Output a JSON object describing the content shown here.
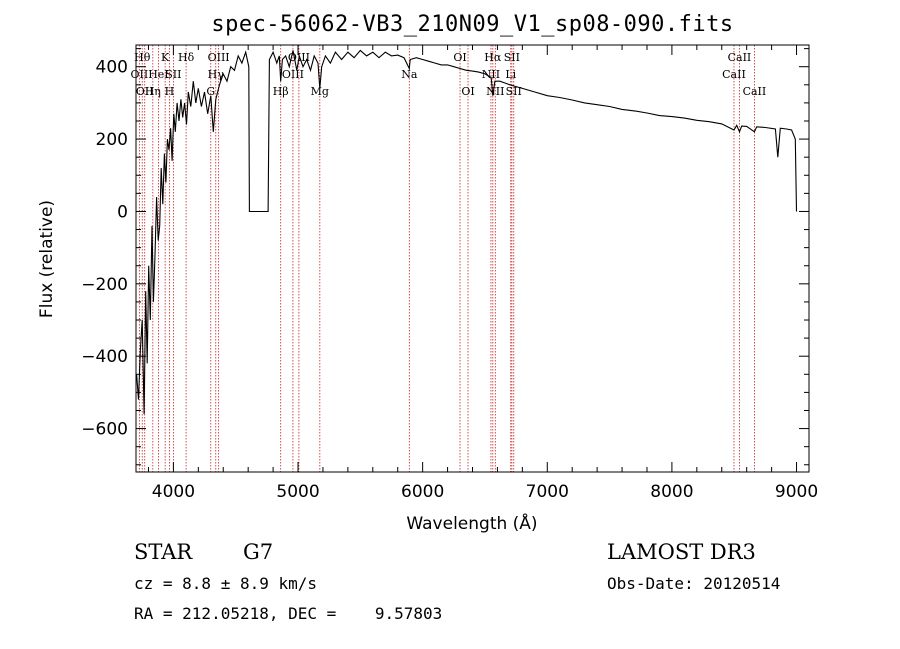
{
  "chart_data": {
    "type": "line",
    "title": "spec-56062-VB3_210N09_V1_sp08-090.fits",
    "xlabel": "Wavelength (Å)",
    "ylabel": "Flux (relative)",
    "xlim": [
      3700,
      9100
    ],
    "ylim": [
      -720,
      460
    ],
    "xticks": [
      4000,
      5000,
      6000,
      7000,
      8000,
      9000
    ],
    "yticks": [
      -600,
      -400,
      -200,
      0,
      200,
      400
    ],
    "series": [
      {
        "name": "spectrum",
        "points": [
          [
            3705,
            -450
          ],
          [
            3720,
            -520
          ],
          [
            3735,
            -380
          ],
          [
            3750,
            -300
          ],
          [
            3765,
            -560
          ],
          [
            3778,
            -220
          ],
          [
            3790,
            -420
          ],
          [
            3802,
            -150
          ],
          [
            3815,
            -300
          ],
          [
            3828,
            -40
          ],
          [
            3840,
            -250
          ],
          [
            3852,
            -130
          ],
          [
            3865,
            40
          ],
          [
            3878,
            -80
          ],
          [
            3890,
            -40
          ],
          [
            3902,
            120
          ],
          [
            3915,
            20
          ],
          [
            3928,
            160
          ],
          [
            3940,
            80
          ],
          [
            3952,
            200
          ],
          [
            3965,
            170
          ],
          [
            3978,
            230
          ],
          [
            3990,
            140
          ],
          [
            4003,
            270
          ],
          [
            4015,
            220
          ],
          [
            4030,
            300
          ],
          [
            4045,
            250
          ],
          [
            4060,
            310
          ],
          [
            4075,
            260
          ],
          [
            4090,
            300
          ],
          [
            4105,
            240
          ],
          [
            4120,
            330
          ],
          [
            4140,
            290
          ],
          [
            4160,
            360
          ],
          [
            4180,
            300
          ],
          [
            4200,
            340
          ],
          [
            4225,
            290
          ],
          [
            4250,
            330
          ],
          [
            4275,
            270
          ],
          [
            4300,
            320
          ],
          [
            4320,
            220
          ],
          [
            4340,
            310
          ],
          [
            4370,
            350
          ],
          [
            4400,
            380
          ],
          [
            4430,
            360
          ],
          [
            4460,
            400
          ],
          [
            4490,
            390
          ],
          [
            4520,
            430
          ],
          [
            4550,
            410
          ],
          [
            4580,
            440
          ],
          [
            4605,
            400
          ],
          [
            4610,
            0
          ],
          [
            4640,
            0
          ],
          [
            4680,
            0
          ],
          [
            4720,
            0
          ],
          [
            4760,
            0
          ],
          [
            4770,
            420
          ],
          [
            4800,
            440
          ],
          [
            4830,
            410
          ],
          [
            4850,
            430
          ],
          [
            4861,
            360
          ],
          [
            4875,
            420
          ],
          [
            4900,
            430
          ],
          [
            4930,
            400
          ],
          [
            4960,
            445
          ],
          [
            4990,
            390
          ],
          [
            5010,
            430
          ],
          [
            5040,
            400
          ],
          [
            5070,
            420
          ],
          [
            5100,
            390
          ],
          [
            5130,
            430
          ],
          [
            5160,
            410
          ],
          [
            5175,
            340
          ],
          [
            5190,
            400
          ],
          [
            5220,
            430
          ],
          [
            5260,
            410
          ],
          [
            5300,
            440
          ],
          [
            5350,
            420
          ],
          [
            5400,
            440
          ],
          [
            5450,
            425
          ],
          [
            5500,
            445
          ],
          [
            5550,
            430
          ],
          [
            5600,
            440
          ],
          [
            5650,
            425
          ],
          [
            5700,
            440
          ],
          [
            5750,
            430
          ],
          [
            5800,
            432
          ],
          [
            5850,
            425
          ],
          [
            5893,
            395
          ],
          [
            5900,
            420
          ],
          [
            5950,
            425
          ],
          [
            6000,
            420
          ],
          [
            6050,
            415
          ],
          [
            6100,
            410
          ],
          [
            6150,
            405
          ],
          [
            6200,
            405
          ],
          [
            6250,
            400
          ],
          [
            6300,
            395
          ],
          [
            6350,
            390
          ],
          [
            6400,
            388
          ],
          [
            6450,
            385
          ],
          [
            6500,
            380
          ],
          [
            6550,
            370
          ],
          [
            6563,
            320
          ],
          [
            6580,
            360
          ],
          [
            6620,
            360
          ],
          [
            6660,
            355
          ],
          [
            6700,
            350
          ],
          [
            6750,
            345
          ],
          [
            6800,
            340
          ],
          [
            6900,
            330
          ],
          [
            7000,
            320
          ],
          [
            7100,
            315
          ],
          [
            7200,
            308
          ],
          [
            7300,
            300
          ],
          [
            7400,
            295
          ],
          [
            7500,
            290
          ],
          [
            7600,
            282
          ],
          [
            7700,
            278
          ],
          [
            7800,
            272
          ],
          [
            7900,
            265
          ],
          [
            8000,
            262
          ],
          [
            8100,
            258
          ],
          [
            8200,
            252
          ],
          [
            8300,
            248
          ],
          [
            8400,
            242
          ],
          [
            8498,
            225
          ],
          [
            8520,
            238
          ],
          [
            8542,
            220
          ],
          [
            8560,
            236
          ],
          [
            8600,
            235
          ],
          [
            8662,
            220
          ],
          [
            8680,
            234
          ],
          [
            8750,
            232
          ],
          [
            8830,
            228
          ],
          [
            8850,
            150
          ],
          [
            8870,
            230
          ],
          [
            8920,
            228
          ],
          [
            8960,
            225
          ],
          [
            8990,
            200
          ],
          [
            9000,
            0
          ]
        ]
      }
    ],
    "lines": [
      {
        "wl": 3727,
        "label": "OII",
        "row": 2
      },
      {
        "wl": 3750,
        "label": "Hθ",
        "row": 1
      },
      {
        "wl": 3770,
        "label": "OII",
        "row": 3
      },
      {
        "wl": 3835,
        "label": "Hη",
        "row": 3
      },
      {
        "wl": 3880,
        "label": "HeI",
        "row": 2
      },
      {
        "wl": 3934,
        "label": "K",
        "row": 1
      },
      {
        "wl": 3968,
        "label": "H",
        "row": 3
      },
      {
        "wl": 4000,
        "label": "SII",
        "row": 2
      },
      {
        "wl": 4102,
        "label": "Hδ",
        "row": 1
      },
      {
        "wl": 4300,
        "label": "G",
        "row": 3
      },
      {
        "wl": 4340,
        "label": "Hγ",
        "row": 2
      },
      {
        "wl": 4363,
        "label": "OIII",
        "row": 1
      },
      {
        "wl": 4861,
        "label": "Hβ",
        "row": 3
      },
      {
        "wl": 4959,
        "label": "OIII",
        "row": 2
      },
      {
        "wl": 5007,
        "label": "OIII",
        "row": 1
      },
      {
        "wl": 5175,
        "label": "Mg",
        "row": 3
      },
      {
        "wl": 5893,
        "label": "Na",
        "row": 2
      },
      {
        "wl": 6300,
        "label": "OI",
        "row": 1
      },
      {
        "wl": 6364,
        "label": "OI",
        "row": 3
      },
      {
        "wl": 6548,
        "label": "NII",
        "row": 2
      },
      {
        "wl": 6563,
        "label": "Hα",
        "row": 1
      },
      {
        "wl": 6583,
        "label": "NII",
        "row": 3
      },
      {
        "wl": 6707,
        "label": "Li",
        "row": 2
      },
      {
        "wl": 6716,
        "label": "SII",
        "row": 1
      },
      {
        "wl": 6731,
        "label": "SII",
        "row": 3
      },
      {
        "wl": 8498,
        "label": "CaII",
        "row": 2
      },
      {
        "wl": 8542,
        "label": "CaII",
        "row": 1
      },
      {
        "wl": 8662,
        "label": "CaII",
        "row": 3
      }
    ]
  },
  "info": {
    "object_class": "STAR",
    "subclass": "G7",
    "survey": "LAMOST DR3",
    "cz": "cz = 8.8 ± 8.9 km/s",
    "obs_date": "Obs-Date: 20120514",
    "coords": "RA = 212.05218, DEC =    9.57803"
  },
  "colors": {
    "spectrum": "#000000",
    "line_markers": "#cc2222",
    "axes": "#000000"
  }
}
